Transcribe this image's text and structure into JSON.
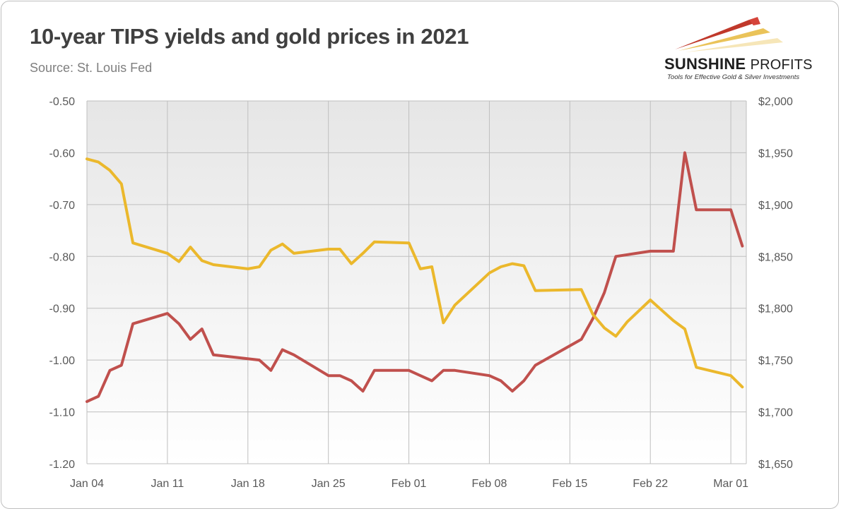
{
  "header": {
    "title": "10-year TIPS yields and gold prices in 2021",
    "source": "Source: St. Louis Fed"
  },
  "logo": {
    "name_bold": "SUNSHINE",
    "name_light": "PROFITS",
    "tagline": "Tools for Effective Gold & Silver Investments"
  },
  "chart_data": {
    "type": "line",
    "title": "10-year TIPS yields and gold prices in 2021",
    "x_tick_labels": [
      "Jan 04",
      "Jan 11",
      "Jan 18",
      "Jan 25",
      "Feb 01",
      "Feb 08",
      "Feb 15",
      "Feb 22",
      "Mar 01"
    ],
    "x_range": [
      "2021-01-04",
      "2021-03-02"
    ],
    "y_left": {
      "range": [
        -1.2,
        -0.5
      ],
      "tick_labels": [
        "-0.50",
        "-0.60",
        "-0.70",
        "-0.80",
        "-0.90",
        "-1.00",
        "-1.10",
        "-1.20"
      ]
    },
    "y_right": {
      "range": [
        1650,
        2000
      ],
      "tick_labels": [
        "$2,000",
        "$1,950",
        "$1,900",
        "$1,850",
        "$1,800",
        "$1,750",
        "$1,700",
        "$1,650"
      ]
    },
    "grid": true,
    "legend": "none",
    "series": [
      {
        "axis": "left",
        "color": "#c0504d",
        "points": [
          [
            "2021-01-04",
            -1.08
          ],
          [
            "2021-01-05",
            -1.07
          ],
          [
            "2021-01-06",
            -1.02
          ],
          [
            "2021-01-07",
            -1.01
          ],
          [
            "2021-01-08",
            -0.93
          ],
          [
            "2021-01-11",
            -0.91
          ],
          [
            "2021-01-12",
            -0.93
          ],
          [
            "2021-01-13",
            -0.96
          ],
          [
            "2021-01-14",
            -0.94
          ],
          [
            "2021-01-15",
            -0.99
          ],
          [
            "2021-01-19",
            -1.0
          ],
          [
            "2021-01-20",
            -1.02
          ],
          [
            "2021-01-21",
            -0.98
          ],
          [
            "2021-01-22",
            -0.99
          ],
          [
            "2021-01-25",
            -1.03
          ],
          [
            "2021-01-26",
            -1.03
          ],
          [
            "2021-01-27",
            -1.04
          ],
          [
            "2021-01-28",
            -1.06
          ],
          [
            "2021-01-29",
            -1.02
          ],
          [
            "2021-02-01",
            -1.02
          ],
          [
            "2021-02-02",
            -1.03
          ],
          [
            "2021-02-03",
            -1.04
          ],
          [
            "2021-02-04",
            -1.02
          ],
          [
            "2021-02-05",
            -1.02
          ],
          [
            "2021-02-08",
            -1.03
          ],
          [
            "2021-02-09",
            -1.04
          ],
          [
            "2021-02-10",
            -1.06
          ],
          [
            "2021-02-11",
            -1.04
          ],
          [
            "2021-02-12",
            -1.01
          ],
          [
            "2021-02-16",
            -0.96
          ],
          [
            "2021-02-17",
            -0.92
          ],
          [
            "2021-02-18",
            -0.87
          ],
          [
            "2021-02-19",
            -0.8
          ],
          [
            "2021-02-22",
            -0.79
          ],
          [
            "2021-02-23",
            -0.79
          ],
          [
            "2021-02-24",
            -0.79
          ],
          [
            "2021-02-25",
            -0.6
          ],
          [
            "2021-02-26",
            -0.71
          ],
          [
            "2021-03-01",
            -0.71
          ],
          [
            "2021-03-02",
            -0.78
          ]
        ]
      },
      {
        "axis": "right",
        "color": "#ebb82c",
        "points": [
          [
            "2021-01-04",
            1944
          ],
          [
            "2021-01-05",
            1941
          ],
          [
            "2021-01-06",
            1933
          ],
          [
            "2021-01-07",
            1920
          ],
          [
            "2021-01-08",
            1863
          ],
          [
            "2021-01-11",
            1853
          ],
          [
            "2021-01-12",
            1845
          ],
          [
            "2021-01-13",
            1859
          ],
          [
            "2021-01-14",
            1846
          ],
          [
            "2021-01-15",
            1842
          ],
          [
            "2021-01-18",
            1838
          ],
          [
            "2021-01-19",
            1840
          ],
          [
            "2021-01-20",
            1856
          ],
          [
            "2021-01-21",
            1862
          ],
          [
            "2021-01-22",
            1853
          ],
          [
            "2021-01-25",
            1857
          ],
          [
            "2021-01-26",
            1857
          ],
          [
            "2021-01-27",
            1843
          ],
          [
            "2021-01-28",
            1853
          ],
          [
            "2021-01-29",
            1864
          ],
          [
            "2021-02-01",
            1863
          ],
          [
            "2021-02-02",
            1838
          ],
          [
            "2021-02-03",
            1840
          ],
          [
            "2021-02-04",
            1786
          ],
          [
            "2021-02-05",
            1803
          ],
          [
            "2021-02-08",
            1834
          ],
          [
            "2021-02-09",
            1840
          ],
          [
            "2021-02-10",
            1843
          ],
          [
            "2021-02-11",
            1841
          ],
          [
            "2021-02-12",
            1817
          ],
          [
            "2021-02-16",
            1818
          ],
          [
            "2021-02-17",
            1794
          ],
          [
            "2021-02-18",
            1781
          ],
          [
            "2021-02-19",
            1773
          ],
          [
            "2021-02-20",
            1787
          ],
          [
            "2021-02-22",
            1808
          ],
          [
            "2021-02-23",
            1798
          ],
          [
            "2021-02-24",
            1788
          ],
          [
            "2021-02-25",
            1780
          ],
          [
            "2021-02-26",
            1743
          ],
          [
            "2021-03-01",
            1735
          ],
          [
            "2021-03-02",
            1724
          ]
        ]
      }
    ]
  }
}
